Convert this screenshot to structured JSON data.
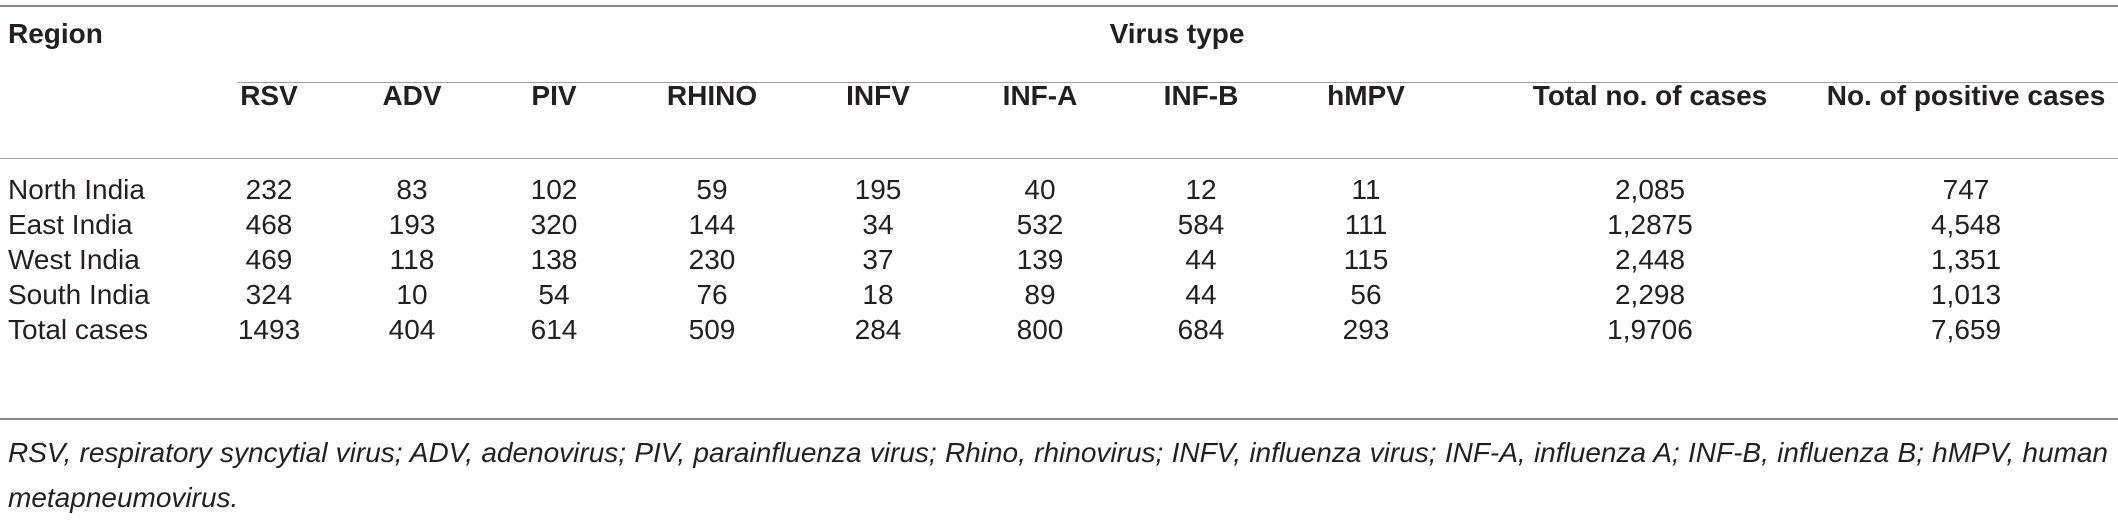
{
  "table": {
    "region_header": "Region",
    "group_header": "Virus type",
    "columns": [
      "RSV",
      "ADV",
      "PIV",
      "RHINO",
      "INFV",
      "INF-A",
      "INF-B",
      "hMPV",
      "Total no. of cases",
      "No. of positive cases"
    ],
    "rows": [
      {
        "label": "North India",
        "values": [
          "232",
          "83",
          "102",
          "59",
          "195",
          "40",
          "12",
          "11",
          "2,085",
          "747"
        ]
      },
      {
        "label": "East India",
        "values": [
          "468",
          "193",
          "320",
          "144",
          "34",
          "532",
          "584",
          "111",
          "1,2875",
          "4,548"
        ]
      },
      {
        "label": "West India",
        "values": [
          "469",
          "118",
          "138",
          "230",
          "37",
          "139",
          "44",
          "115",
          "2,448",
          "1,351"
        ]
      },
      {
        "label": "South India",
        "values": [
          "324",
          "10",
          "54",
          "76",
          "18",
          "89",
          "44",
          "56",
          "2,298",
          "1,013"
        ]
      },
      {
        "label": "Total cases",
        "values": [
          "1493",
          "404",
          "614",
          "509",
          "284",
          "800",
          "684",
          "293",
          "1,9706",
          "7,659"
        ]
      }
    ]
  },
  "footnote": "RSV, respiratory syncytial virus; ADV, adenovirus; PIV, parainfluenza virus; Rhino, rhinovirus; INFV, influenza virus; INF-A, influenza A; INF-B, influenza B; hMPV, human metapneumovirus."
}
